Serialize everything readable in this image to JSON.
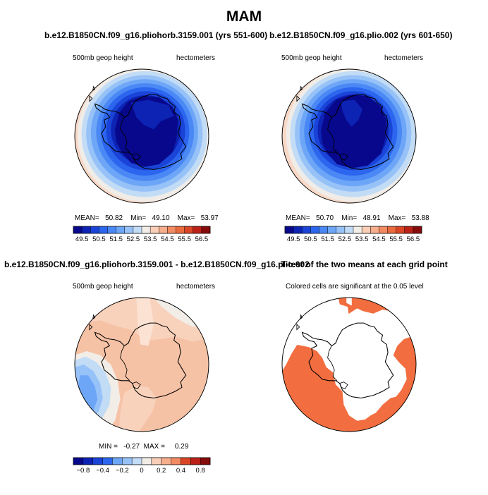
{
  "main_title": "MAM",
  "colors": {
    "coast": "#000000",
    "diff_bg": "#f7c2a6",
    "signif_fill": "#f26d3f"
  },
  "panels": [
    {
      "title": "b.e12.B1850CN.f09_g16.pliohorb.3159.001 (yrs 551-600)",
      "left_label": "500mb geop height",
      "right_label": "hectometers",
      "stats_label": "MEAN=   50.82    Min=   49.10    Max=   53.97"
    },
    {
      "title": "b.e12.B1850CN.f09_g16.plio.002 (yrs 601-650)",
      "left_label": "500mb geop height",
      "right_label": "hectometers",
      "stats_label": "MEAN=   50.70    Min=   48.91    Max=   53.88"
    },
    {
      "title": "b.e12.B1850CN.f09_g16.pliohorb.3159.001 - b.e12.B1850CN.f09_g16.plio.002",
      "left_label": "500mb geop height",
      "right_label": "hectometers",
      "stats_label": "MIN =   -0.27  MAX =     0.29"
    },
    {
      "title": "T-test of the two means at each grid point",
      "left_label": "Colored cells are significant at the 0.05 level"
    }
  ],
  "chart_data": [
    {
      "type": "heatmap",
      "title": "b.e12.B1850CN.f09_g16.pliohorb.3159.001 (yrs 551-600)",
      "variable": "500mb geop height",
      "units": "hectometers",
      "projection": "south polar stereographic",
      "mean": 50.82,
      "min": 49.1,
      "max": 53.97,
      "colorbar_levels": [
        49.5,
        50,
        50.5,
        51,
        51.5,
        52,
        52.5,
        53,
        53.5,
        54,
        54.5,
        55,
        55.5,
        56,
        56.5
      ],
      "colorbar_tick_labels": [
        "49.5",
        "50.5",
        "51.5",
        "52.5",
        "53.5",
        "54.5",
        "55.5",
        "56.5"
      ],
      "colorbar_colors": [
        "#08088c",
        "#0d23b4",
        "#1a44d8",
        "#2c66ee",
        "#4a88f5",
        "#6ea6f7",
        "#97c2f8",
        "#c2dcf6",
        "#f3ede7",
        "#f8ceb7",
        "#f6ae8c",
        "#f38b62",
        "#ea6a3e",
        "#d94525",
        "#bb2116",
        "#860b0b"
      ]
    },
    {
      "type": "heatmap",
      "title": "b.e12.B1850CN.f09_g16.plio.002 (yrs 601-650)",
      "variable": "500mb geop height",
      "units": "hectometers",
      "projection": "south polar stereographic",
      "mean": 50.7,
      "min": 48.91,
      "max": 53.88,
      "colorbar_levels": [
        49.5,
        50,
        50.5,
        51,
        51.5,
        52,
        52.5,
        53,
        53.5,
        54,
        54.5,
        55,
        55.5,
        56,
        56.5
      ],
      "colorbar_tick_labels": [
        "49.5",
        "50.5",
        "51.5",
        "52.5",
        "53.5",
        "54.5",
        "55.5",
        "56.5"
      ],
      "colorbar_colors": [
        "#08088c",
        "#0d23b4",
        "#1a44d8",
        "#2c66ee",
        "#4a88f5",
        "#6ea6f7",
        "#97c2f8",
        "#c2dcf6",
        "#f3ede7",
        "#f8ceb7",
        "#f6ae8c",
        "#f38b62",
        "#ea6a3e",
        "#d94525",
        "#bb2116",
        "#860b0b"
      ]
    },
    {
      "type": "heatmap",
      "title": "b.e12.B1850CN.f09_g16.pliohorb.3159.001 - b.e12.B1850CN.f09_g16.plio.002",
      "variable": "500mb geop height",
      "units": "hectometers",
      "projection": "south polar stereographic",
      "min": -0.27,
      "max": 0.29,
      "colorbar_levels": [
        -0.8,
        -0.6,
        -0.4,
        -0.3,
        -0.2,
        -0.1,
        0,
        0.1,
        0.2,
        0.3,
        0.4,
        0.6,
        0.8
      ],
      "colorbar_tick_labels": [
        "-0.8",
        "-0.4",
        "-0.2",
        "0",
        "0.2",
        "0.4",
        "0.8"
      ],
      "colorbar_colors": [
        "#08088c",
        "#0d23b4",
        "#1a44d8",
        "#2c66ee",
        "#6ea6f7",
        "#97c2f8",
        "#c2dcf6",
        "#f3ede7",
        "#f8ceb7",
        "#f6ae8c",
        "#f38b62",
        "#d94525",
        "#bb2116",
        "#860b0b"
      ]
    },
    {
      "type": "heatmap",
      "title": "T-test of the two means at each grid point",
      "note": "Colored cells are significant at the 0.05 level",
      "significance_level": 0.05,
      "projection": "south polar stereographic"
    }
  ]
}
